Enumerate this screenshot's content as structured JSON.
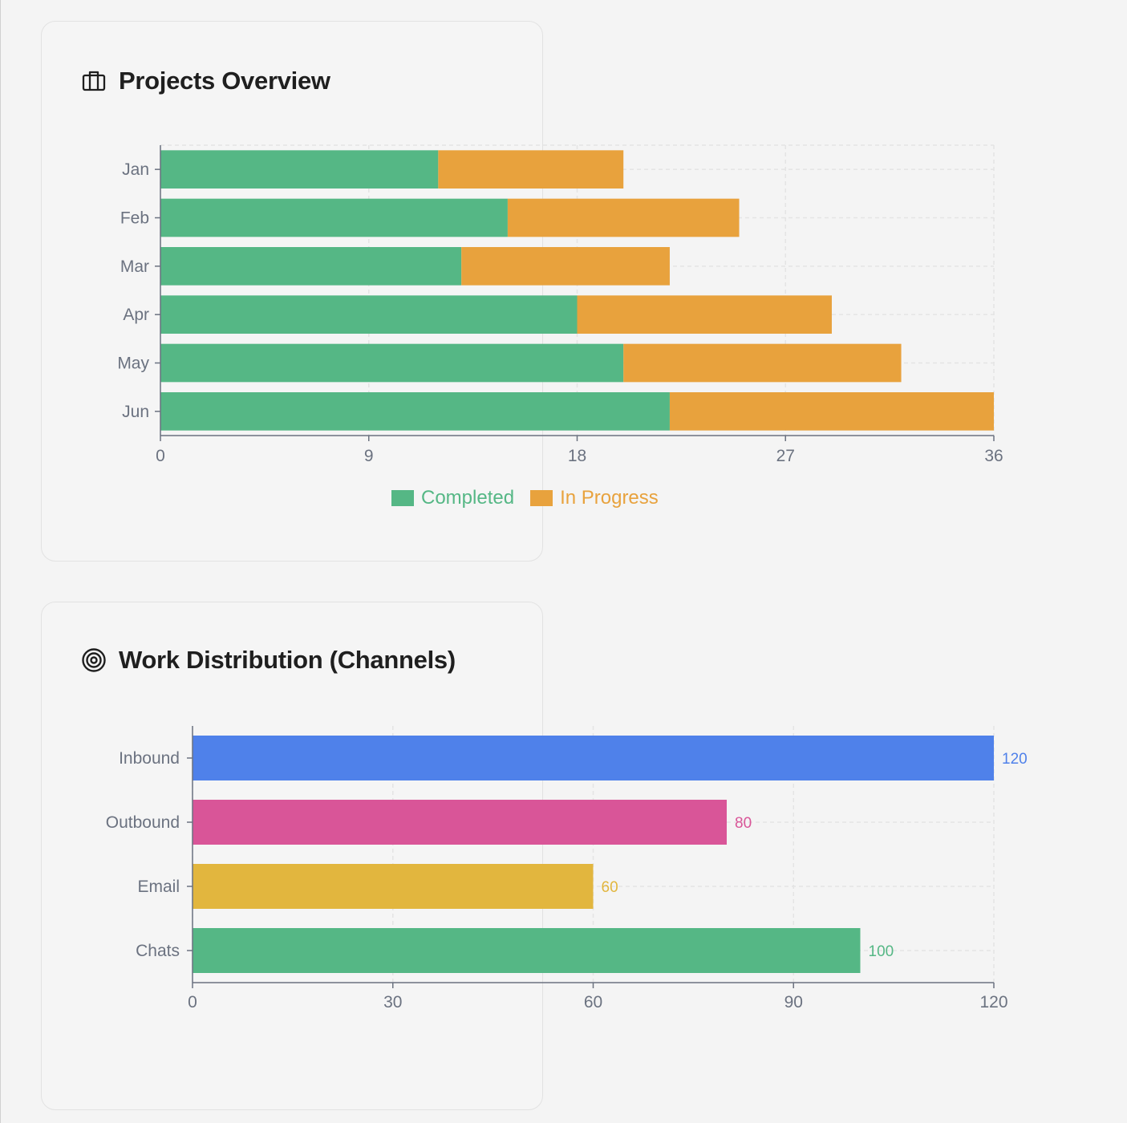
{
  "cards": {
    "projects": {
      "title": "Projects Overview",
      "icon": "briefcase-icon"
    },
    "channels": {
      "title": "Work Distribution (Channels)",
      "icon": "target-icon"
    }
  },
  "chart_data": [
    {
      "type": "bar",
      "orientation": "horizontal",
      "stacked": true,
      "categories": [
        "Jan",
        "Feb",
        "Mar",
        "Apr",
        "May",
        "Jun"
      ],
      "series": [
        {
          "name": "Completed",
          "values": [
            12,
            15,
            13,
            18,
            20,
            22
          ],
          "color": "#55b785"
        },
        {
          "name": "In Progress",
          "values": [
            8,
            10,
            9,
            11,
            12,
            14
          ],
          "color": "#e8a23d"
        }
      ],
      "xlim": [
        0,
        36
      ],
      "xticks": [
        0,
        9,
        18,
        27,
        36
      ],
      "grid": true,
      "legend": "bottom",
      "title": "Projects Overview"
    },
    {
      "type": "bar",
      "orientation": "horizontal",
      "categories": [
        "Inbound",
        "Outbound",
        "Email",
        "Chats"
      ],
      "values": [
        120,
        80,
        60,
        100
      ],
      "colors": [
        "#4f81ea",
        "#d95598",
        "#e2b63e",
        "#55b785"
      ],
      "data_labels": [
        "120",
        "80",
        "60",
        "100"
      ],
      "xlim": [
        0,
        120
      ],
      "xticks": [
        0,
        30,
        60,
        90,
        120
      ],
      "grid": true,
      "title": "Work Distribution (Channels)"
    }
  ]
}
